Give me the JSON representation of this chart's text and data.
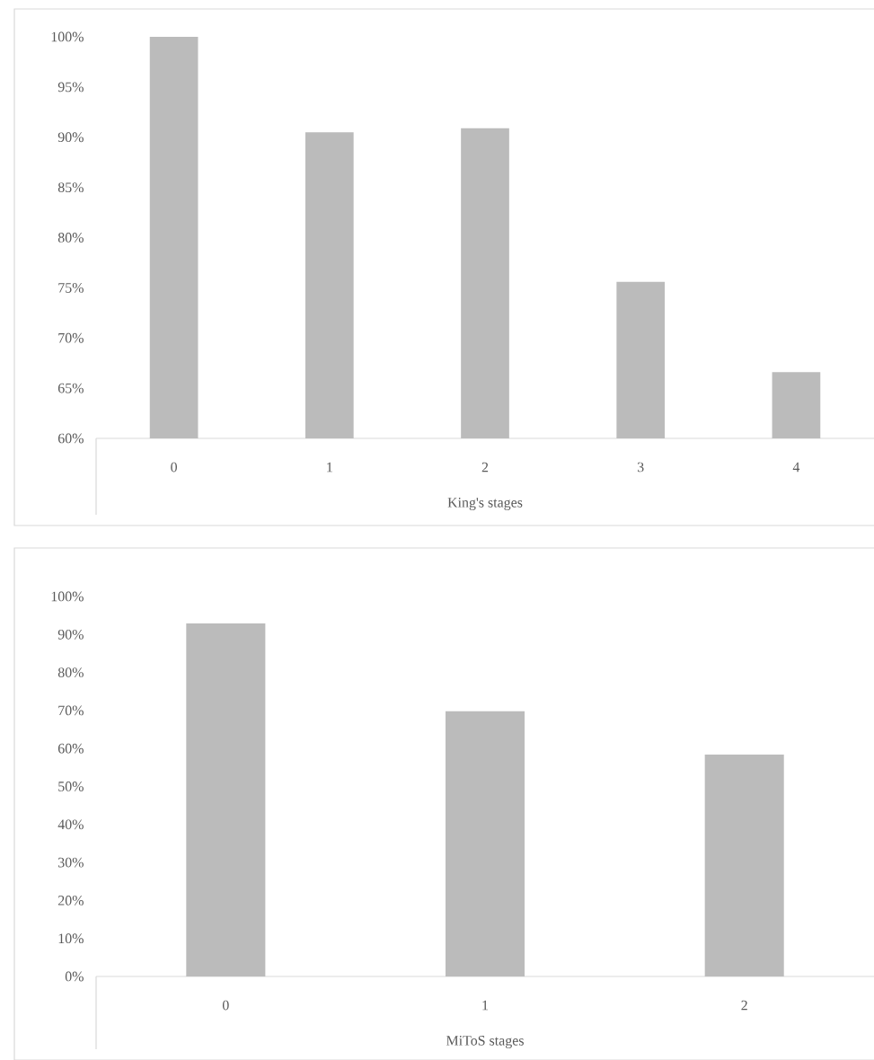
{
  "chart_data": [
    {
      "type": "bar",
      "xlabel": "King's stages",
      "categories": [
        "0",
        "1",
        "2",
        "3",
        "4"
      ],
      "values": [
        100,
        90.5,
        90.9,
        75.6,
        66.6
      ],
      "color": "#bbbbbb",
      "ylim": [
        60,
        100
      ],
      "yticks": [
        {
          "value": 60,
          "label": "60%"
        },
        {
          "value": 65,
          "label": "65%"
        },
        {
          "value": 70,
          "label": "70%"
        },
        {
          "value": 75,
          "label": "75%"
        },
        {
          "value": 80,
          "label": "80%"
        },
        {
          "value": 85,
          "label": "85%"
        },
        {
          "value": 90,
          "label": "90%"
        },
        {
          "value": 95,
          "label": "95%"
        },
        {
          "value": 100,
          "label": "100%"
        }
      ]
    },
    {
      "type": "bar",
      "xlabel": "MiToS stages",
      "categories": [
        "0",
        "1",
        "2"
      ],
      "values": [
        92.9,
        69.8,
        58.4
      ],
      "color": "#bbbbbb",
      "ylim": [
        0,
        100
      ],
      "yticks": [
        {
          "value": 0,
          "label": "0%"
        },
        {
          "value": 10,
          "label": "10%"
        },
        {
          "value": 20,
          "label": "20%"
        },
        {
          "value": 30,
          "label": "30%"
        },
        {
          "value": 40,
          "label": "40%"
        },
        {
          "value": 50,
          "label": "50%"
        },
        {
          "value": 60,
          "label": "60%"
        },
        {
          "value": 70,
          "label": "70%"
        },
        {
          "value": 80,
          "label": "80%"
        },
        {
          "value": 90,
          "label": "90%"
        },
        {
          "value": 100,
          "label": "100%"
        }
      ]
    }
  ]
}
